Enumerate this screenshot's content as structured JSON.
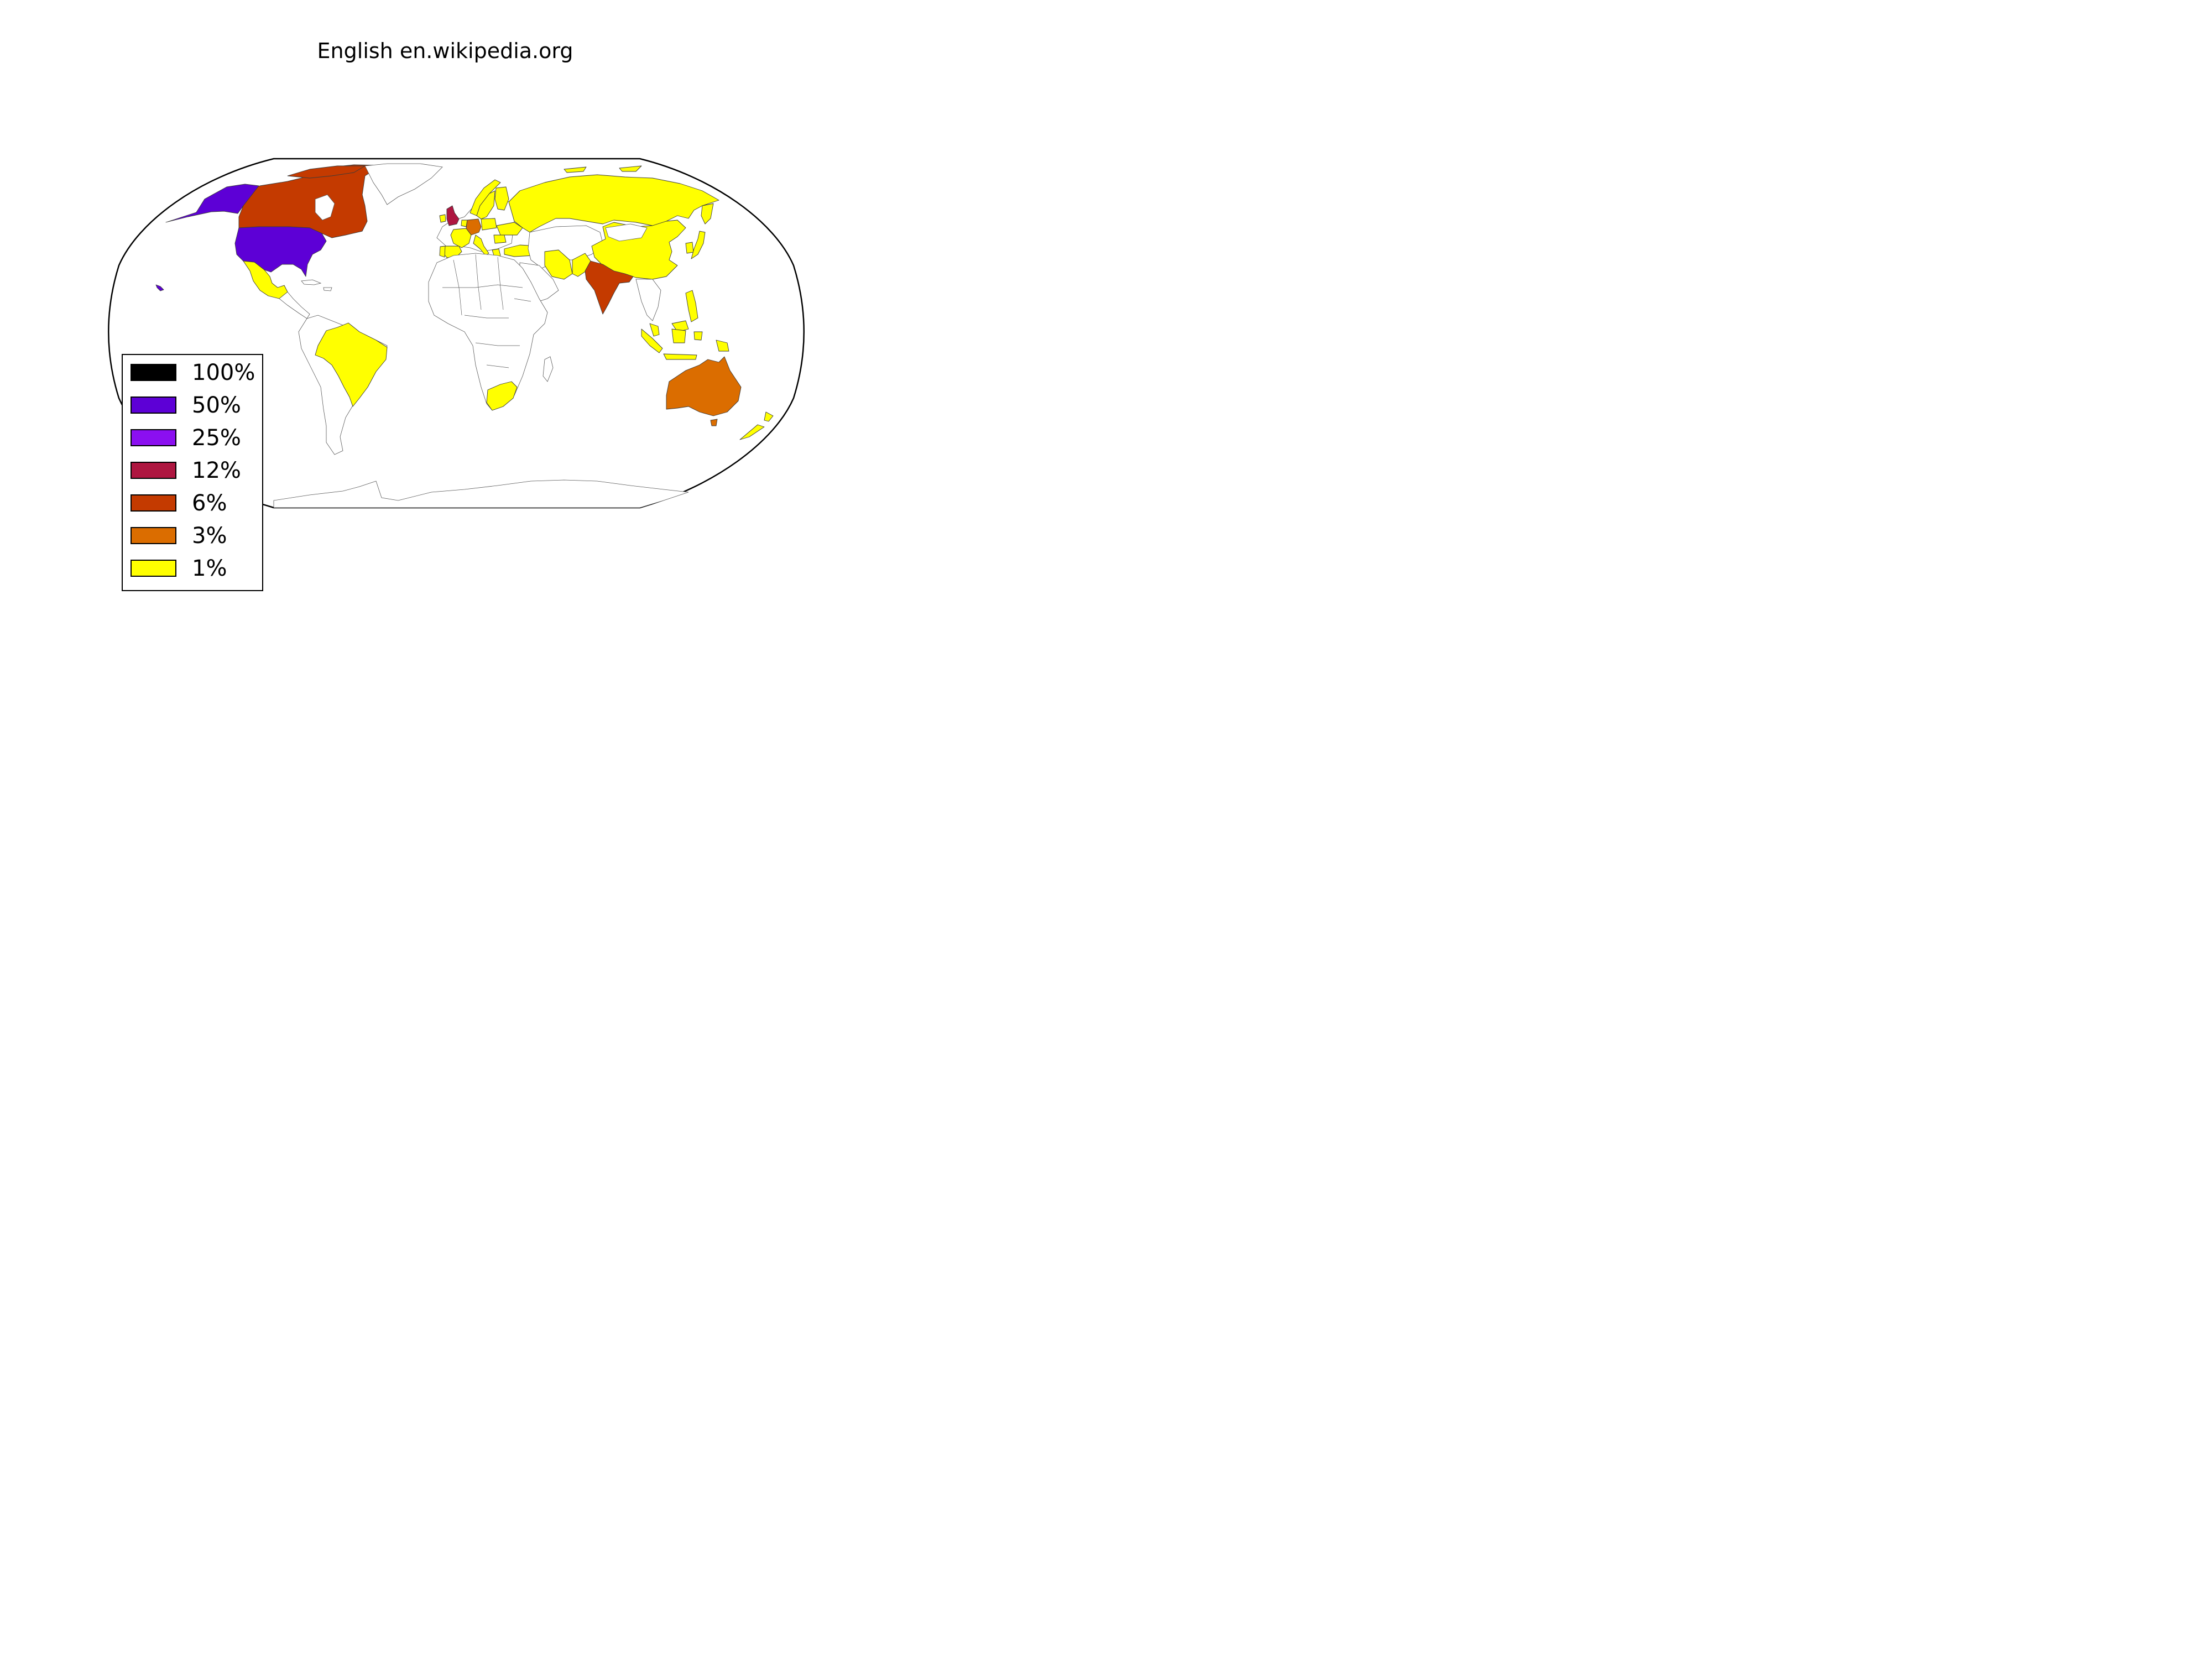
{
  "title": "English en.wikipedia.org",
  "legend": {
    "placement": "bottom-left",
    "items": [
      {
        "label": "100%",
        "color": "#000000"
      },
      {
        "label": "50%",
        "color": "#5d00d6"
      },
      {
        "label": "25%",
        "color": "#8b0ff0"
      },
      {
        "label": "12%",
        "color": "#ae1640"
      },
      {
        "label": "6%",
        "color": "#c43a00"
      },
      {
        "label": "3%",
        "color": "#db6d00"
      },
      {
        "label": "1%",
        "color": "#ffff00"
      }
    ]
  },
  "regions": [
    {
      "name": "United States",
      "share_bin": "50%"
    },
    {
      "name": "Canada",
      "share_bin": "6%"
    },
    {
      "name": "United Kingdom",
      "share_bin": "12%"
    },
    {
      "name": "India",
      "share_bin": "6%"
    },
    {
      "name": "Australia",
      "share_bin": "3%"
    },
    {
      "name": "Germany",
      "share_bin": "3%"
    },
    {
      "name": "Mexico",
      "share_bin": "1%"
    },
    {
      "name": "Brazil",
      "share_bin": "1%"
    },
    {
      "name": "Russia",
      "share_bin": "1%"
    },
    {
      "name": "China",
      "share_bin": "1%"
    },
    {
      "name": "Iran",
      "share_bin": "1%"
    },
    {
      "name": "Turkey",
      "share_bin": "1%"
    },
    {
      "name": "Spain",
      "share_bin": "1%"
    },
    {
      "name": "France",
      "share_bin": "1%"
    },
    {
      "name": "Italy",
      "share_bin": "1%"
    },
    {
      "name": "Poland",
      "share_bin": "1%"
    },
    {
      "name": "Ukraine",
      "share_bin": "1%"
    },
    {
      "name": "Sweden",
      "share_bin": "1%"
    },
    {
      "name": "Norway",
      "share_bin": "1%"
    },
    {
      "name": "Finland",
      "share_bin": "1%"
    },
    {
      "name": "Japan",
      "share_bin": "1%"
    },
    {
      "name": "South Korea",
      "share_bin": "1%"
    },
    {
      "name": "Philippines",
      "share_bin": "1%"
    },
    {
      "name": "Malaysia",
      "share_bin": "1%"
    },
    {
      "name": "Indonesia",
      "share_bin": "1%"
    },
    {
      "name": "Pakistan",
      "share_bin": "1%"
    },
    {
      "name": "South Africa",
      "share_bin": "1%"
    },
    {
      "name": "New Zealand",
      "share_bin": "1%"
    },
    {
      "name": "Netherlands",
      "share_bin": "1%"
    },
    {
      "name": "Ireland",
      "share_bin": "1%"
    },
    {
      "name": "Portugal",
      "share_bin": "1%"
    },
    {
      "name": "Greece",
      "share_bin": "1%"
    },
    {
      "name": "Romania",
      "share_bin": "1%"
    },
    {
      "name": "Papua New Guinea",
      "share_bin": "1%"
    }
  ]
}
